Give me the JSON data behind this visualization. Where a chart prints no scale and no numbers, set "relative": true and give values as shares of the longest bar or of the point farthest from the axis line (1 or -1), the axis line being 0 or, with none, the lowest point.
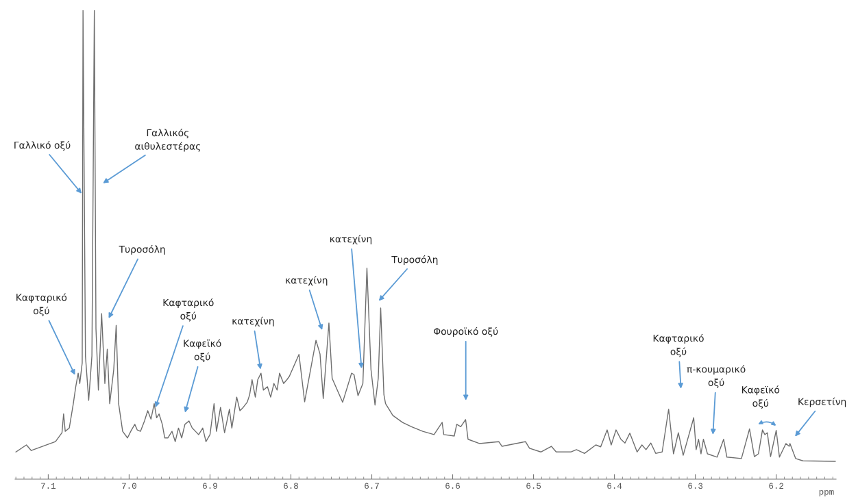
{
  "chart_data": {
    "type": "line",
    "relative": true,
    "xlabel": "ppm",
    "xlim": [
      7.141,
      6.126
    ],
    "xticks": [
      7.1,
      {
        "value": 7.0,
        "label": "7.0"
      },
      6.9,
      6.8,
      6.7,
      6.6,
      6.5,
      6.4,
      6.3,
      6.2
    ],
    "grid": false,
    "marker": "none",
    "line_style": "solid",
    "tick_labels": "x",
    "series": [
      {
        "color": "#6e6e6e",
        "x": [
          7.14,
          7.127,
          7.121,
          7.091,
          7.083,
          7.081,
          7.079,
          7.074,
          7.069,
          7.066,
          7.063,
          7.061,
          7.058,
          7.057,
          7.054,
          7.05,
          7.046,
          7.043,
          7.041,
          7.038,
          7.034,
          7.03,
          7.027,
          7.024,
          7.019,
          7.016,
          7.013,
          7.008,
          7.002,
          6.998,
          6.993,
          6.99,
          6.986,
          6.981,
          6.977,
          6.973,
          6.969,
          6.966,
          6.963,
          6.959,
          6.956,
          6.952,
          6.947,
          6.943,
          6.939,
          6.935,
          6.931,
          6.926,
          6.922,
          6.918,
          6.914,
          6.909,
          6.905,
          6.9,
          6.895,
          6.892,
          6.887,
          6.882,
          6.876,
          6.873,
          6.867,
          6.863,
          6.859,
          6.854,
          6.851,
          6.848,
          6.844,
          6.841,
          6.837,
          6.834,
          6.829,
          6.825,
          6.821,
          6.817,
          6.814,
          6.809,
          6.805,
          6.802,
          6.79,
          6.783,
          6.769,
          6.764,
          6.76,
          6.753,
          6.749,
          6.736,
          6.725,
          6.722,
          6.717,
          6.711,
          6.706,
          6.701,
          6.696,
          6.692,
          6.689,
          6.685,
          6.683,
          6.674,
          6.662,
          6.651,
          6.637,
          6.623,
          6.613,
          6.611,
          6.598,
          6.595,
          6.59,
          6.588,
          6.584,
          6.581,
          6.567,
          6.543,
          6.539,
          6.51,
          6.505,
          6.491,
          6.478,
          6.472,
          6.454,
          6.447,
          6.437,
          6.423,
          6.417,
          6.409,
          6.404,
          6.398,
          6.392,
          6.387,
          6.381,
          6.372,
          6.366,
          6.361,
          6.355,
          6.349,
          6.341,
          6.333,
          6.327,
          6.321,
          6.315,
          6.302,
          6.299,
          6.296,
          6.293,
          6.29,
          6.285,
          6.273,
          6.265,
          6.261,
          6.243,
          6.233,
          6.227,
          6.222,
          6.217,
          6.214,
          6.211,
          6.207,
          6.2,
          6.196,
          6.188,
          6.184,
          6.183,
          6.176,
          6.167,
          6.127
        ],
        "values": [
          0.058,
          0.073,
          0.061,
          0.08,
          0.099,
          0.139,
          0.102,
          0.109,
          0.161,
          0.197,
          0.226,
          0.204,
          0.248,
          1.0,
          0.263,
          0.168,
          0.263,
          1.0,
          0.321,
          0.19,
          0.353,
          0.204,
          0.277,
          0.161,
          0.234,
          0.328,
          0.161,
          0.102,
          0.088,
          0.102,
          0.117,
          0.105,
          0.102,
          0.124,
          0.146,
          0.128,
          0.161,
          0.131,
          0.139,
          0.117,
          0.088,
          0.088,
          0.102,
          0.08,
          0.109,
          0.088,
          0.117,
          0.124,
          0.109,
          0.102,
          0.095,
          0.109,
          0.08,
          0.095,
          0.161,
          0.102,
          0.153,
          0.099,
          0.149,
          0.109,
          0.175,
          0.146,
          0.153,
          0.164,
          0.18,
          0.212,
          0.175,
          0.212,
          0.226,
          0.19,
          0.197,
          0.175,
          0.204,
          0.19,
          0.226,
          0.204,
          0.212,
          0.219,
          0.266,
          0.165,
          0.296,
          0.267,
          0.172,
          0.333,
          0.215,
          0.164,
          0.226,
          0.223,
          0.178,
          0.204,
          0.45,
          0.234,
          0.158,
          0.215,
          0.365,
          0.18,
          0.161,
          0.136,
          0.121,
          0.112,
          0.102,
          0.095,
          0.121,
          0.095,
          0.092,
          0.117,
          0.112,
          0.117,
          0.127,
          0.085,
          0.076,
          0.08,
          0.07,
          0.08,
          0.066,
          0.058,
          0.07,
          0.058,
          0.058,
          0.063,
          0.055,
          0.073,
          0.069,
          0.105,
          0.073,
          0.105,
          0.085,
          0.077,
          0.098,
          0.058,
          0.073,
          0.063,
          0.077,
          0.055,
          0.058,
          0.149,
          0.054,
          0.099,
          0.051,
          0.131,
          0.063,
          0.085,
          0.054,
          0.085,
          0.054,
          0.047,
          0.085,
          0.047,
          0.044,
          0.107,
          0.048,
          0.054,
          0.105,
          0.095,
          0.099,
          0.048,
          0.104,
          0.047,
          0.076,
          0.07,
          0.076,
          0.044,
          0.039,
          0.038
        ]
      }
    ],
    "annotations": [
      "Γαλλικό οξύ",
      "Γαλλικός\nαιθυλεστέρας",
      "Τυροσόλη",
      "Καφταρικό\nοξύ",
      "Καφταρικό\nοξύ",
      "Καφεϊκό\nοξύ",
      "κατεχίνη",
      "κατεχίνη",
      "κατεχίνη",
      "Τυροσόλη",
      "Φουροϊκό οξύ",
      "Καφταρικό\nοξύ",
      "π-κουμαρικό\nοξύ",
      "Καφεϊκό\nοξύ",
      "Κερσετίνη"
    ]
  }
}
